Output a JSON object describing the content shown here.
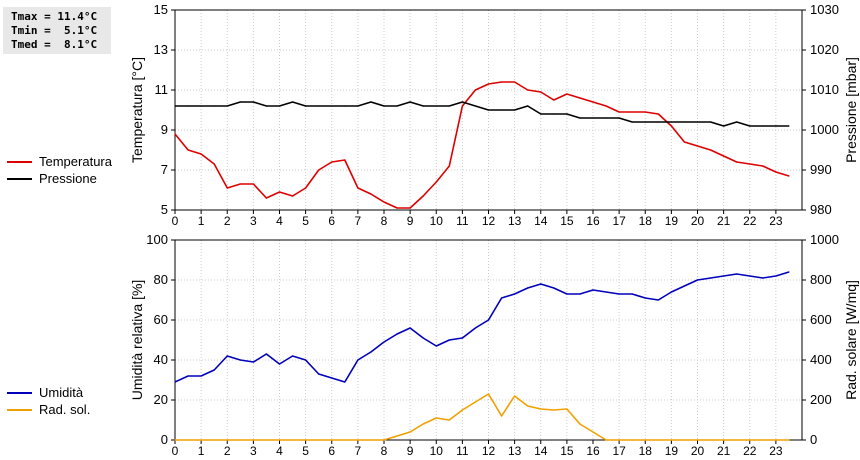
{
  "stats": {
    "tmax": "Tmax = 11.4°C",
    "tmin": "Tmin =  5.1°C",
    "tmed": "Tmed =  8.1°C"
  },
  "legend_top": [
    {
      "label": "Temperatura",
      "color": "#dd0000"
    },
    {
      "label": "Pressione",
      "color": "#000000"
    }
  ],
  "legend_bottom": [
    {
      "label": "Umidità",
      "color": "#0000bb"
    },
    {
      "label": "Rad. sol.",
      "color": "#f0a000"
    }
  ],
  "chart_data": [
    {
      "type": "line",
      "xlim": [
        0,
        24
      ],
      "xticks": [
        0,
        1,
        2,
        3,
        4,
        5,
        6,
        7,
        8,
        9,
        10,
        11,
        12,
        13,
        14,
        15,
        16,
        17,
        18,
        19,
        20,
        21,
        22,
        23
      ],
      "ylabel": "Temperatura [°C]",
      "y2label": "Pressione [mbar]",
      "ylim": [
        5,
        15
      ],
      "yticks": [
        5,
        7,
        9,
        11,
        13,
        15
      ],
      "y2lim": [
        980,
        1030
      ],
      "y2ticks": [
        980,
        990,
        1000,
        1010,
        1020,
        1030
      ],
      "grid": true,
      "series": [
        {
          "name": "Temperatura",
          "axis": "left",
          "color": "#dd0000",
          "x": [
            0,
            0.5,
            1,
            1.5,
            2,
            2.5,
            3,
            3.5,
            4,
            4.5,
            5,
            5.5,
            6,
            6.5,
            7,
            7.5,
            8,
            8.5,
            9,
            9.5,
            10,
            10.5,
            11,
            11.5,
            12,
            12.5,
            13,
            13.5,
            14,
            14.5,
            15,
            15.5,
            16,
            16.5,
            17,
            17.5,
            18,
            18.5,
            19,
            19.5,
            20,
            20.5,
            21,
            21.5,
            22,
            22.5,
            23,
            23.5
          ],
          "y": [
            8.8,
            8.0,
            7.8,
            7.3,
            6.1,
            6.3,
            6.3,
            5.6,
            5.9,
            5.7,
            6.1,
            7.0,
            7.4,
            7.5,
            6.1,
            5.8,
            5.4,
            5.1,
            5.1,
            5.7,
            6.4,
            7.2,
            10.2,
            11.0,
            11.3,
            11.4,
            11.4,
            11.0,
            10.9,
            10.5,
            10.8,
            10.6,
            10.4,
            10.2,
            9.9,
            9.9,
            9.9,
            9.8,
            9.2,
            8.4,
            8.2,
            8.0,
            7.7,
            7.4,
            7.3,
            7.2,
            6.9,
            6.7
          ]
        },
        {
          "name": "Pressione",
          "axis": "right",
          "color": "#000000",
          "x": [
            0,
            0.5,
            1,
            1.5,
            2,
            2.5,
            3,
            3.5,
            4,
            4.5,
            5,
            5.5,
            6,
            6.5,
            7,
            7.5,
            8,
            8.5,
            9,
            9.5,
            10,
            10.5,
            11,
            11.5,
            12,
            12.5,
            13,
            13.5,
            14,
            14.5,
            15,
            15.5,
            16,
            16.5,
            17,
            17.5,
            18,
            18.5,
            19,
            19.5,
            20,
            20.5,
            21,
            21.5,
            22,
            22.5,
            23,
            23.5
          ],
          "y": [
            1006,
            1006,
            1006,
            1006,
            1006,
            1007,
            1007,
            1006,
            1006,
            1007,
            1006,
            1006,
            1006,
            1006,
            1006,
            1007,
            1006,
            1006,
            1007,
            1006,
            1006,
            1006,
            1007,
            1006,
            1005,
            1005,
            1005,
            1006,
            1004,
            1004,
            1004,
            1003,
            1003,
            1003,
            1003,
            1002,
            1002,
            1002,
            1002,
            1002,
            1002,
            1002,
            1001,
            1002,
            1001,
            1001,
            1001,
            1001
          ]
        }
      ]
    },
    {
      "type": "line",
      "xlim": [
        0,
        24
      ],
      "xticks": [
        0,
        1,
        2,
        3,
        4,
        5,
        6,
        7,
        8,
        9,
        10,
        11,
        12,
        13,
        14,
        15,
        16,
        17,
        18,
        19,
        20,
        21,
        22,
        23
      ],
      "ylabel": "Umidità relativa [%]",
      "y2label": "Rad. solare [W/mq]",
      "ylim": [
        0,
        100
      ],
      "yticks": [
        0,
        20,
        40,
        60,
        80,
        100
      ],
      "y2lim": [
        0,
        1000
      ],
      "y2ticks": [
        0,
        200,
        400,
        600,
        800,
        1000
      ],
      "grid": true,
      "series": [
        {
          "name": "Umidità",
          "axis": "left",
          "color": "#0000bb",
          "x": [
            0,
            0.5,
            1,
            1.5,
            2,
            2.5,
            3,
            3.5,
            4,
            4.5,
            5,
            5.5,
            6,
            6.5,
            7,
            7.5,
            8,
            8.5,
            9,
            9.5,
            10,
            10.5,
            11,
            11.5,
            12,
            12.5,
            13,
            13.5,
            14,
            14.5,
            15,
            15.5,
            16,
            16.5,
            17,
            17.5,
            18,
            18.5,
            19,
            19.5,
            20,
            20.5,
            21,
            21.5,
            22,
            22.5,
            23,
            23.5
          ],
          "y": [
            29,
            32,
            32,
            35,
            42,
            40,
            39,
            43,
            38,
            42,
            40,
            33,
            31,
            29,
            40,
            44,
            49,
            53,
            56,
            51,
            47,
            50,
            51,
            56,
            60,
            71,
            73,
            76,
            78,
            76,
            73,
            73,
            75,
            74,
            73,
            73,
            71,
            70,
            74,
            77,
            80,
            81,
            82,
            83,
            82,
            81,
            82,
            84
          ]
        },
        {
          "name": "Rad. sol.",
          "axis": "right",
          "color": "#f0a000",
          "x": [
            0,
            0.5,
            1,
            1.5,
            2,
            2.5,
            3,
            3.5,
            4,
            4.5,
            5,
            5.5,
            6,
            6.5,
            7,
            7.5,
            8,
            8.5,
            9,
            9.5,
            10,
            10.5,
            11,
            11.5,
            12,
            12.5,
            13,
            13.5,
            14,
            14.5,
            15,
            15.5,
            16,
            16.5,
            17,
            17.5,
            18,
            18.5,
            19,
            19.5,
            20,
            20.5,
            21,
            21.5,
            22,
            22.5,
            23,
            23.5
          ],
          "y": [
            0,
            0,
            0,
            0,
            0,
            0,
            0,
            0,
            0,
            0,
            0,
            0,
            0,
            0,
            0,
            0,
            0,
            20,
            40,
            80,
            110,
            100,
            150,
            190,
            230,
            120,
            220,
            170,
            155,
            150,
            155,
            80,
            40,
            0,
            0,
            0,
            0,
            0,
            0,
            0,
            0,
            0,
            0,
            0,
            0,
            0,
            0,
            0
          ]
        }
      ]
    }
  ]
}
